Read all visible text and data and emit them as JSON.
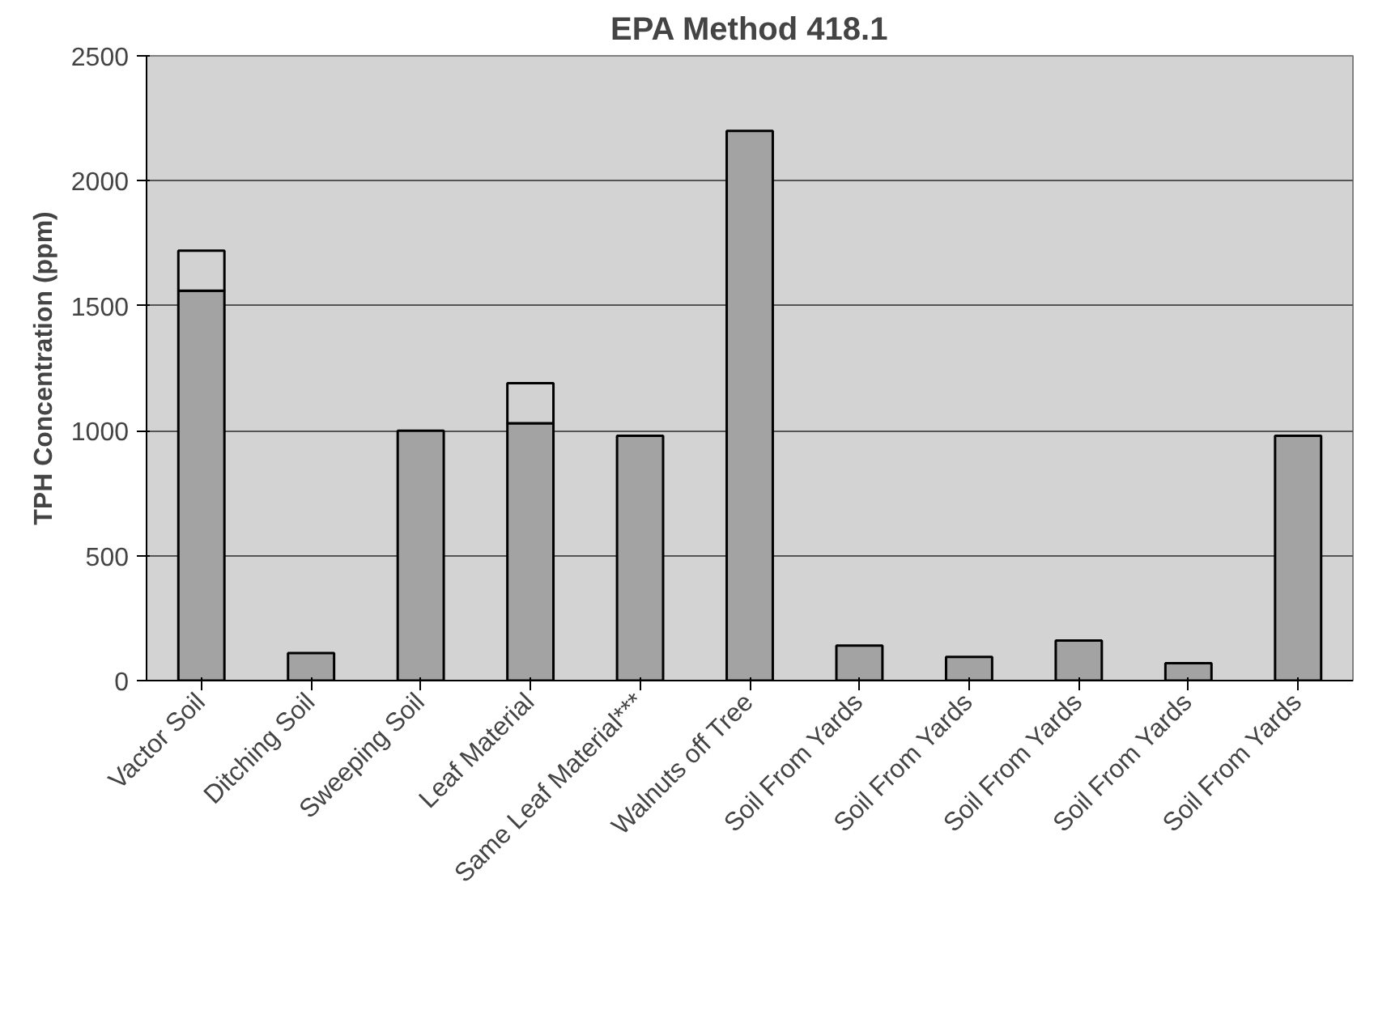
{
  "chart_data": {
    "type": "bar",
    "title": "EPA Method 418.1",
    "ylabel": "TPH Concentration (ppm)",
    "categories": [
      "Vactor Soil",
      "Ditching Soil",
      "Sweeping Soil",
      "Leaf Material",
      "Same Leaf Material***",
      "Walnuts off Tree",
      "Soil From Yards",
      "Soil From Yards",
      "Soil From Yards",
      "Soil From Yards",
      "Soil From Yards"
    ],
    "stacked": true,
    "series": [
      {
        "color": "#a3a3a3",
        "values": [
          1560,
          110,
          1000,
          1030,
          980,
          2200,
          140,
          95,
          160,
          70,
          980
        ]
      },
      {
        "color": "#d2d2d2",
        "values": [
          160,
          null,
          null,
          160,
          null,
          null,
          null,
          null,
          null,
          null,
          null
        ]
      }
    ],
    "ylim": [
      0,
      2500
    ],
    "yticks": [
      0,
      500,
      1000,
      1500,
      2000,
      2500
    ],
    "grid": "y"
  }
}
